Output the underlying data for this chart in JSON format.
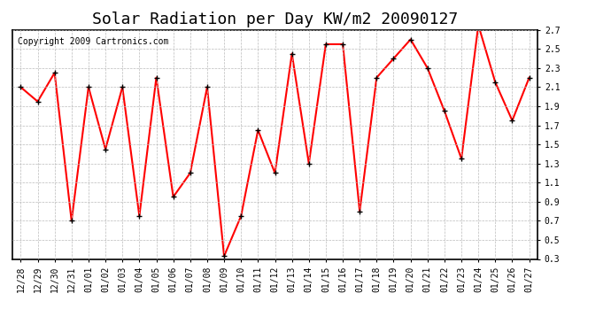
{
  "title": "Solar Radiation per Day KW/m2 20090127",
  "copyright": "Copyright 2009 Cartronics.com",
  "dates": [
    "12/28",
    "12/29",
    "12/30",
    "12/31",
    "01/01",
    "01/02",
    "01/03",
    "01/04",
    "01/05",
    "01/06",
    "01/07",
    "01/08",
    "01/09",
    "01/10",
    "01/11",
    "01/12",
    "01/13",
    "01/14",
    "01/15",
    "01/16",
    "01/17",
    "01/18",
    "01/19",
    "01/20",
    "01/21",
    "01/22",
    "01/23",
    "01/24",
    "01/25",
    "01/26",
    "01/27"
  ],
  "values": [
    2.1,
    1.95,
    2.25,
    0.7,
    2.1,
    1.45,
    2.1,
    0.75,
    2.2,
    0.95,
    1.2,
    2.1,
    0.33,
    0.75,
    1.65,
    1.2,
    2.45,
    1.3,
    2.55,
    2.55,
    0.8,
    2.2,
    2.4,
    2.6,
    2.3,
    1.85,
    1.35,
    2.75,
    2.15,
    1.75,
    2.2
  ],
  "line_color": "#ff0000",
  "marker_color": "#000000",
  "bg_color": "#ffffff",
  "plot_bg_color": "#ffffff",
  "grid_color": "#bbbbbb",
  "title_fontsize": 13,
  "copyright_fontsize": 7,
  "tick_fontsize": 7,
  "ylim": [
    0.3,
    2.7
  ],
  "yticks": [
    0.3,
    0.5,
    0.7,
    0.9,
    1.1,
    1.3,
    1.5,
    1.7,
    1.9,
    2.1,
    2.3,
    2.5,
    2.7
  ],
  "fig_width": 6.9,
  "fig_height": 3.75,
  "dpi": 100
}
